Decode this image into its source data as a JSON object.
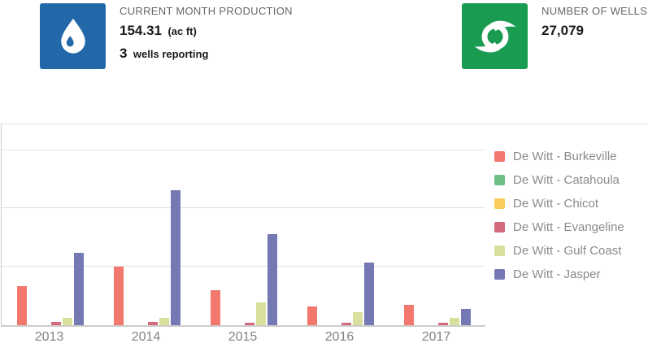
{
  "cards": {
    "production": {
      "label": "CURRENT MONTH PRODUCTION",
      "value": "154.31",
      "unit": "(ac ft)",
      "wells_reporting": "3",
      "wells_reporting_label": "wells reporting",
      "icon": "water-drop-icon",
      "icon_bg": "#2268a9"
    },
    "wells": {
      "label": "NUMBER OF WELLS",
      "value": "27,079",
      "icon": "fan-icon",
      "icon_bg": "#199b52"
    }
  },
  "chart_data": {
    "type": "bar",
    "title": "",
    "xlabel": "",
    "ylabel": "",
    "categories": [
      "2013",
      "2014",
      "2015",
      "2016",
      "2017"
    ],
    "series": [
      {
        "name": "De Witt - Burkeville",
        "color": "#f2776c",
        "values": [
          335,
          500,
          300,
          157,
          172
        ]
      },
      {
        "name": "De Witt - Catahoula",
        "color": "#6ebe87",
        "values": [
          0,
          0,
          0,
          0,
          0
        ]
      },
      {
        "name": "De Witt - Chicot",
        "color": "#f8cd5b",
        "values": [
          0,
          0,
          0,
          0,
          0
        ]
      },
      {
        "name": "De Witt - Evangeline",
        "color": "#d4697e",
        "values": [
          28,
          28,
          24,
          23,
          20
        ]
      },
      {
        "name": "De Witt - Gulf Coast",
        "color": "#d9e09e",
        "values": [
          63,
          62,
          192,
          115,
          66
        ]
      },
      {
        "name": "De Witt - Jasper",
        "color": "#7479b4",
        "values": [
          620,
          1158,
          778,
          535,
          137
        ]
      }
    ],
    "ylim": [
      0,
      1720
    ],
    "gridline_values": [
      500,
      1000,
      1500
    ],
    "y_axis_labels_visible": false,
    "grid": true,
    "legend_position": "right"
  }
}
